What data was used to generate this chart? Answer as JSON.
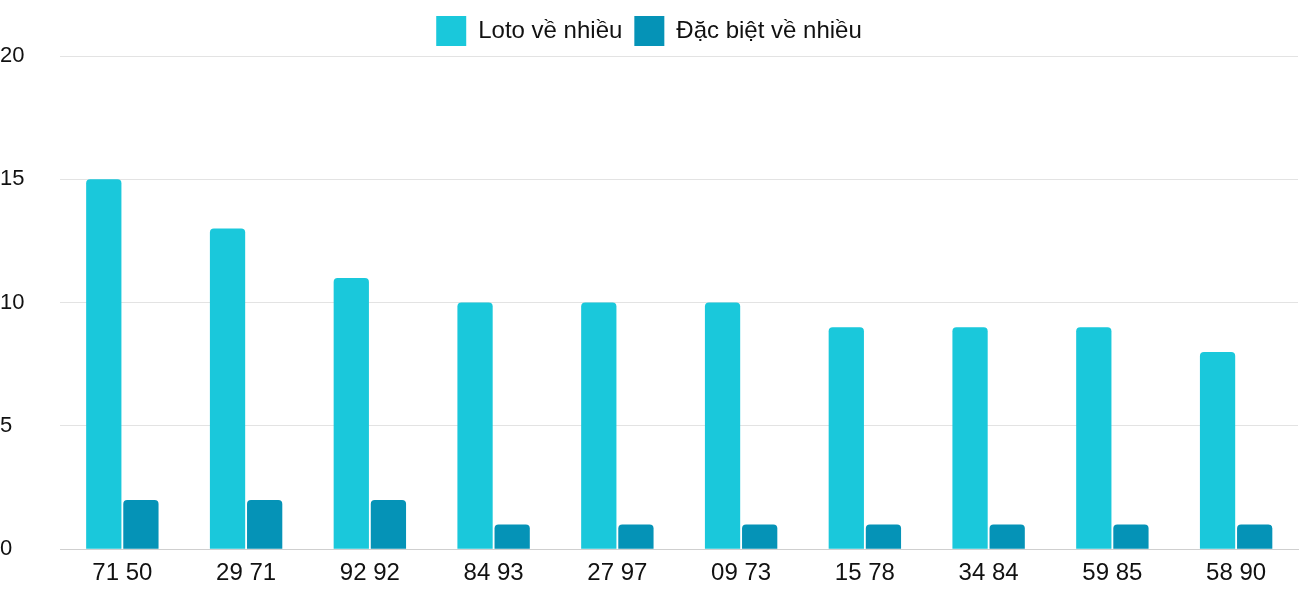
{
  "chart_data": {
    "type": "bar",
    "categories": [
      "71 50",
      "29 71",
      "92 92",
      "84 93",
      "27 97",
      "09 73",
      "15 78",
      "34 84",
      "59 85",
      "58 90"
    ],
    "series": [
      {
        "name": "Loto về nhiều",
        "color": "#1ac8db",
        "values": [
          15,
          13,
          11,
          10,
          10,
          10,
          9,
          9,
          9,
          8
        ]
      },
      {
        "name": "Đặc biệt về nhiều",
        "color": "#0593b7",
        "values": [
          2,
          2,
          2,
          1,
          1,
          1,
          1,
          1,
          1,
          1
        ]
      }
    ],
    "ylim": [
      0,
      20
    ],
    "yticks": [
      0,
      5,
      10,
      15,
      20
    ],
    "grid": "y",
    "legend": "top"
  }
}
